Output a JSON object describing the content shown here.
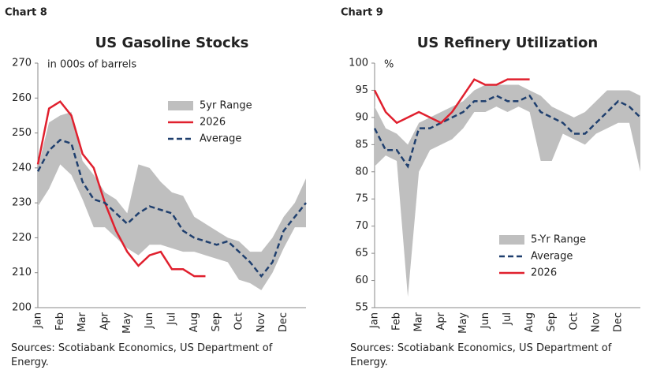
{
  "chart_data": [
    {
      "type": "line",
      "label": "Chart 8",
      "title": "US Gasoline Stocks",
      "note": "in 000s of barrels",
      "source": "Sources: Scotiabank Economics, US Department of Energy.",
      "categories": [
        "Jan",
        null,
        "Feb",
        null,
        "Mar",
        null,
        "Apr",
        null,
        "May",
        null,
        "Jun",
        null,
        "Jul",
        null,
        "Aug",
        null,
        "Sep",
        null,
        "Oct",
        null,
        "Nov",
        null,
        "Dec",
        null,
        null
      ],
      "ylim": [
        200,
        270
      ],
      "yticks": [
        200,
        210,
        220,
        230,
        240,
        250,
        260,
        270
      ],
      "legend": "upper right",
      "series": [
        {
          "name": "5yr Range",
          "color": "#bfbfbf",
          "low": [
            229,
            234,
            241,
            238,
            231,
            223,
            223,
            220,
            217,
            215,
            218,
            218,
            217,
            216,
            216,
            215,
            214,
            213,
            208,
            207,
            205,
            210,
            217,
            223,
            223
          ],
          "high": [
            240,
            253,
            255,
            256,
            242,
            238,
            233,
            231,
            227,
            241,
            240,
            236,
            233,
            232,
            226,
            224,
            222,
            220,
            219,
            216,
            216,
            220,
            226,
            230,
            237
          ]
        },
        {
          "name": "2026",
          "color": "#e0202e",
          "values": [
            241,
            257,
            259,
            255,
            244,
            240,
            230,
            222,
            216,
            212,
            215,
            216,
            211,
            211,
            209,
            209,
            null,
            null,
            null,
            null,
            null,
            null,
            null,
            null,
            null
          ]
        },
        {
          "name": "Average",
          "color": "#1f3f6e",
          "dashed": true,
          "values": [
            239,
            245,
            248,
            247,
            236,
            231,
            230,
            227,
            224,
            227,
            229,
            228,
            227,
            222,
            220,
            219,
            218,
            219,
            216,
            213,
            209,
            213,
            222,
            226,
            230
          ]
        }
      ]
    },
    {
      "type": "line",
      "label": "Chart 9",
      "title": "US Refinery Utilization",
      "note": "%",
      "source": "Sources: Scotiabank Economics, US Department of Energy.",
      "categories": [
        "Jan",
        null,
        "Feb",
        null,
        "Mar",
        null,
        "Apr",
        null,
        "May",
        null,
        "Jun",
        null,
        "Jul",
        null,
        "Aug",
        null,
        "Sep",
        null,
        "Oct",
        null,
        "Nov",
        null,
        "Dec",
        null,
        null
      ],
      "ylim": [
        55,
        100
      ],
      "yticks": [
        55,
        60,
        65,
        70,
        75,
        80,
        85,
        90,
        95,
        100
      ],
      "legend": "lower center",
      "series": [
        {
          "name": "5-Yr Range",
          "color": "#bfbfbf",
          "low": [
            81,
            83,
            82,
            57,
            80,
            84,
            85,
            86,
            88,
            91,
            91,
            92,
            91,
            92,
            91,
            82,
            82,
            87,
            86,
            85,
            87,
            88,
            89,
            89,
            80
          ],
          "high": [
            92,
            88,
            87,
            85,
            89,
            90,
            91,
            92,
            93,
            95,
            96,
            96,
            96,
            96,
            95,
            94,
            92,
            91,
            90,
            91,
            93,
            95,
            95,
            95,
            94
          ]
        },
        {
          "name": "Average",
          "color": "#1f3f6e",
          "dashed": true,
          "values": [
            88,
            84,
            84,
            81,
            88,
            88,
            89,
            90,
            91,
            93,
            93,
            94,
            93,
            93,
            94,
            91,
            90,
            89,
            87,
            87,
            89,
            91,
            93,
            92,
            90
          ]
        },
        {
          "name": "2026",
          "color": "#e0202e",
          "values": [
            95,
            91,
            89,
            90,
            91,
            90,
            89,
            91,
            94,
            97,
            96,
            96,
            97,
            97,
            97,
            null,
            null,
            null,
            null,
            null,
            null,
            null,
            null,
            null,
            null
          ]
        }
      ]
    }
  ]
}
